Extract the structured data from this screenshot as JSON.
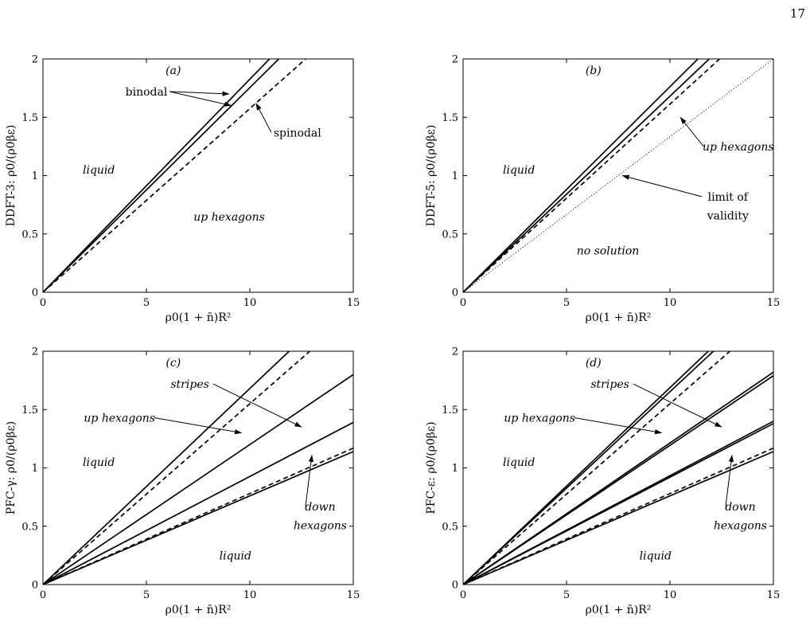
{
  "page_number": "17",
  "chart_data": [
    {
      "type": "line",
      "panel": "(a)",
      "xlabel": "ρ0(1 + n̄)R²",
      "ylabel": "DDFT-3: ρ0/(ρ0βε)",
      "xlim": [
        0,
        15
      ],
      "ylim": [
        0,
        2
      ],
      "xticks": [
        0,
        5,
        10,
        15
      ],
      "yticks": [
        0,
        0.5,
        1,
        1.5,
        2
      ],
      "series": [
        {
          "style": "solid",
          "x": [
            0,
            10.95
          ],
          "y": [
            0,
            2
          ]
        },
        {
          "style": "solid",
          "x": [
            0,
            11.4
          ],
          "y": [
            0,
            2
          ]
        },
        {
          "style": "dashed",
          "x": [
            0,
            12.7
          ],
          "y": [
            0,
            2
          ]
        }
      ],
      "annotations": [
        {
          "text": "binodal",
          "italic": false,
          "x": 5.0,
          "y": 1.72,
          "arrows": [
            [
              9.0,
              1.7
            ],
            [
              9.1,
              1.6
            ]
          ]
        },
        {
          "text": "spinodal",
          "italic": false,
          "x": 12.3,
          "y": 1.37,
          "arrows": [
            [
              10.3,
              1.62
            ]
          ]
        },
        {
          "text": "liquid",
          "italic": true,
          "x": 2.7,
          "y": 1.05
        },
        {
          "text": "up hexagons",
          "italic": true,
          "x": 9.0,
          "y": 0.65
        }
      ]
    },
    {
      "type": "line",
      "panel": "(b)",
      "xlabel": "ρ0(1 + n̄)R²",
      "ylabel": "DDFT-5: ρ0/(ρ0βε)",
      "xlim": [
        0,
        15
      ],
      "ylim": [
        0,
        2
      ],
      "xticks": [
        0,
        5,
        10,
        15
      ],
      "yticks": [
        0,
        0.5,
        1,
        1.5,
        2
      ],
      "series": [
        {
          "style": "solid",
          "x": [
            0,
            11.35
          ],
          "y": [
            0,
            2
          ]
        },
        {
          "style": "solid",
          "x": [
            0,
            11.9
          ],
          "y": [
            0,
            2
          ]
        },
        {
          "style": "dashed",
          "x": [
            0,
            12.4
          ],
          "y": [
            0,
            2
          ]
        },
        {
          "style": "dotted",
          "x": [
            0,
            15
          ],
          "y": [
            0,
            2
          ]
        }
      ],
      "annotations": [
        {
          "text": "up hexagons",
          "italic": true,
          "x": 13.3,
          "y": 1.25,
          "arrows": [
            [
              10.5,
              1.5
            ]
          ]
        },
        {
          "text": "limit of",
          "italic": false,
          "x": 12.8,
          "y": 0.82,
          "arrows": [
            [
              7.7,
              1.0
            ]
          ]
        },
        {
          "text": "validity",
          "italic": false,
          "x": 12.8,
          "y": 0.66
        },
        {
          "text": "liquid",
          "italic": true,
          "x": 2.7,
          "y": 1.05
        },
        {
          "text": "no solution",
          "italic": true,
          "x": 7.0,
          "y": 0.36
        }
      ]
    },
    {
      "type": "line",
      "panel": "(c)",
      "xlabel": "ρ0(1 + n̄)R²",
      "ylabel": "PFC-γ: ρ0/(ρ0βε)",
      "xlim": [
        0,
        15
      ],
      "ylim": [
        0,
        2
      ],
      "xticks": [
        0,
        5,
        10,
        15
      ],
      "yticks": [
        0,
        0.5,
        1,
        1.5,
        2
      ],
      "series": [
        {
          "style": "solid",
          "x": [
            0,
            11.9
          ],
          "y": [
            0,
            2
          ]
        },
        {
          "style": "dashed",
          "x": [
            0,
            12.9
          ],
          "y": [
            0,
            2
          ]
        },
        {
          "style": "solid",
          "x": [
            0,
            15
          ],
          "y": [
            0,
            1.8
          ]
        },
        {
          "style": "solid",
          "x": [
            0,
            15
          ],
          "y": [
            0,
            1.39
          ]
        },
        {
          "style": "dashed",
          "x": [
            0,
            15
          ],
          "y": [
            0,
            1.17
          ]
        },
        {
          "style": "solid",
          "x": [
            0,
            15
          ],
          "y": [
            0,
            1.14
          ]
        }
      ],
      "annotations": [
        {
          "text": "stripes",
          "italic": true,
          "x": 7.1,
          "y": 1.72,
          "arrows": [
            [
              12.5,
              1.35
            ]
          ]
        },
        {
          "text": "up hexagons",
          "italic": true,
          "x": 3.7,
          "y": 1.43,
          "arrows": [
            [
              9.6,
              1.3
            ]
          ]
        },
        {
          "text": "liquid",
          "italic": true,
          "x": 2.7,
          "y": 1.05
        },
        {
          "text": "down",
          "italic": true,
          "x": 13.4,
          "y": 0.67,
          "arrows": [
            [
              13.0,
              1.11
            ]
          ]
        },
        {
          "text": "hexagons",
          "italic": true,
          "x": 13.4,
          "y": 0.51
        },
        {
          "text": "liquid",
          "italic": true,
          "x": 9.3,
          "y": 0.25
        }
      ]
    },
    {
      "type": "line",
      "panel": "(d)",
      "xlabel": "ρ0(1 + n̄)R²",
      "ylabel": "PFC-ε: ρ0/(ρ0βε)",
      "xlim": [
        0,
        15
      ],
      "ylim": [
        0,
        2
      ],
      "xticks": [
        0,
        5,
        10,
        15
      ],
      "yticks": [
        0,
        0.5,
        1,
        1.5,
        2
      ],
      "series": [
        {
          "style": "solid",
          "x": [
            0,
            11.85
          ],
          "y": [
            0,
            2
          ]
        },
        {
          "style": "solid",
          "x": [
            0,
            12.1
          ],
          "y": [
            0,
            2
          ]
        },
        {
          "style": "dashed",
          "x": [
            0,
            12.9
          ],
          "y": [
            0,
            2
          ]
        },
        {
          "style": "solid",
          "x": [
            0,
            15
          ],
          "y": [
            0,
            1.82
          ]
        },
        {
          "style": "solid",
          "x": [
            0,
            15
          ],
          "y": [
            0,
            1.79
          ]
        },
        {
          "style": "solid",
          "x": [
            0,
            15
          ],
          "y": [
            0,
            1.4
          ]
        },
        {
          "style": "solid",
          "x": [
            0,
            15
          ],
          "y": [
            0,
            1.38
          ]
        },
        {
          "style": "dashed",
          "x": [
            0,
            15
          ],
          "y": [
            0,
            1.17
          ]
        },
        {
          "style": "solid",
          "x": [
            0,
            15
          ],
          "y": [
            0,
            1.14
          ]
        }
      ],
      "annotations": [
        {
          "text": "stripes",
          "italic": true,
          "x": 7.1,
          "y": 1.72,
          "arrows": [
            [
              12.5,
              1.35
            ]
          ]
        },
        {
          "text": "up hexagons",
          "italic": true,
          "x": 3.7,
          "y": 1.43,
          "arrows": [
            [
              9.6,
              1.3
            ]
          ]
        },
        {
          "text": "liquid",
          "italic": true,
          "x": 2.7,
          "y": 1.05
        },
        {
          "text": "down",
          "italic": true,
          "x": 13.4,
          "y": 0.67,
          "arrows": [
            [
              13.0,
              1.11
            ]
          ]
        },
        {
          "text": "hexagons",
          "italic": true,
          "x": 13.4,
          "y": 0.51
        },
        {
          "text": "liquid",
          "italic": true,
          "x": 9.3,
          "y": 0.25
        }
      ]
    }
  ]
}
